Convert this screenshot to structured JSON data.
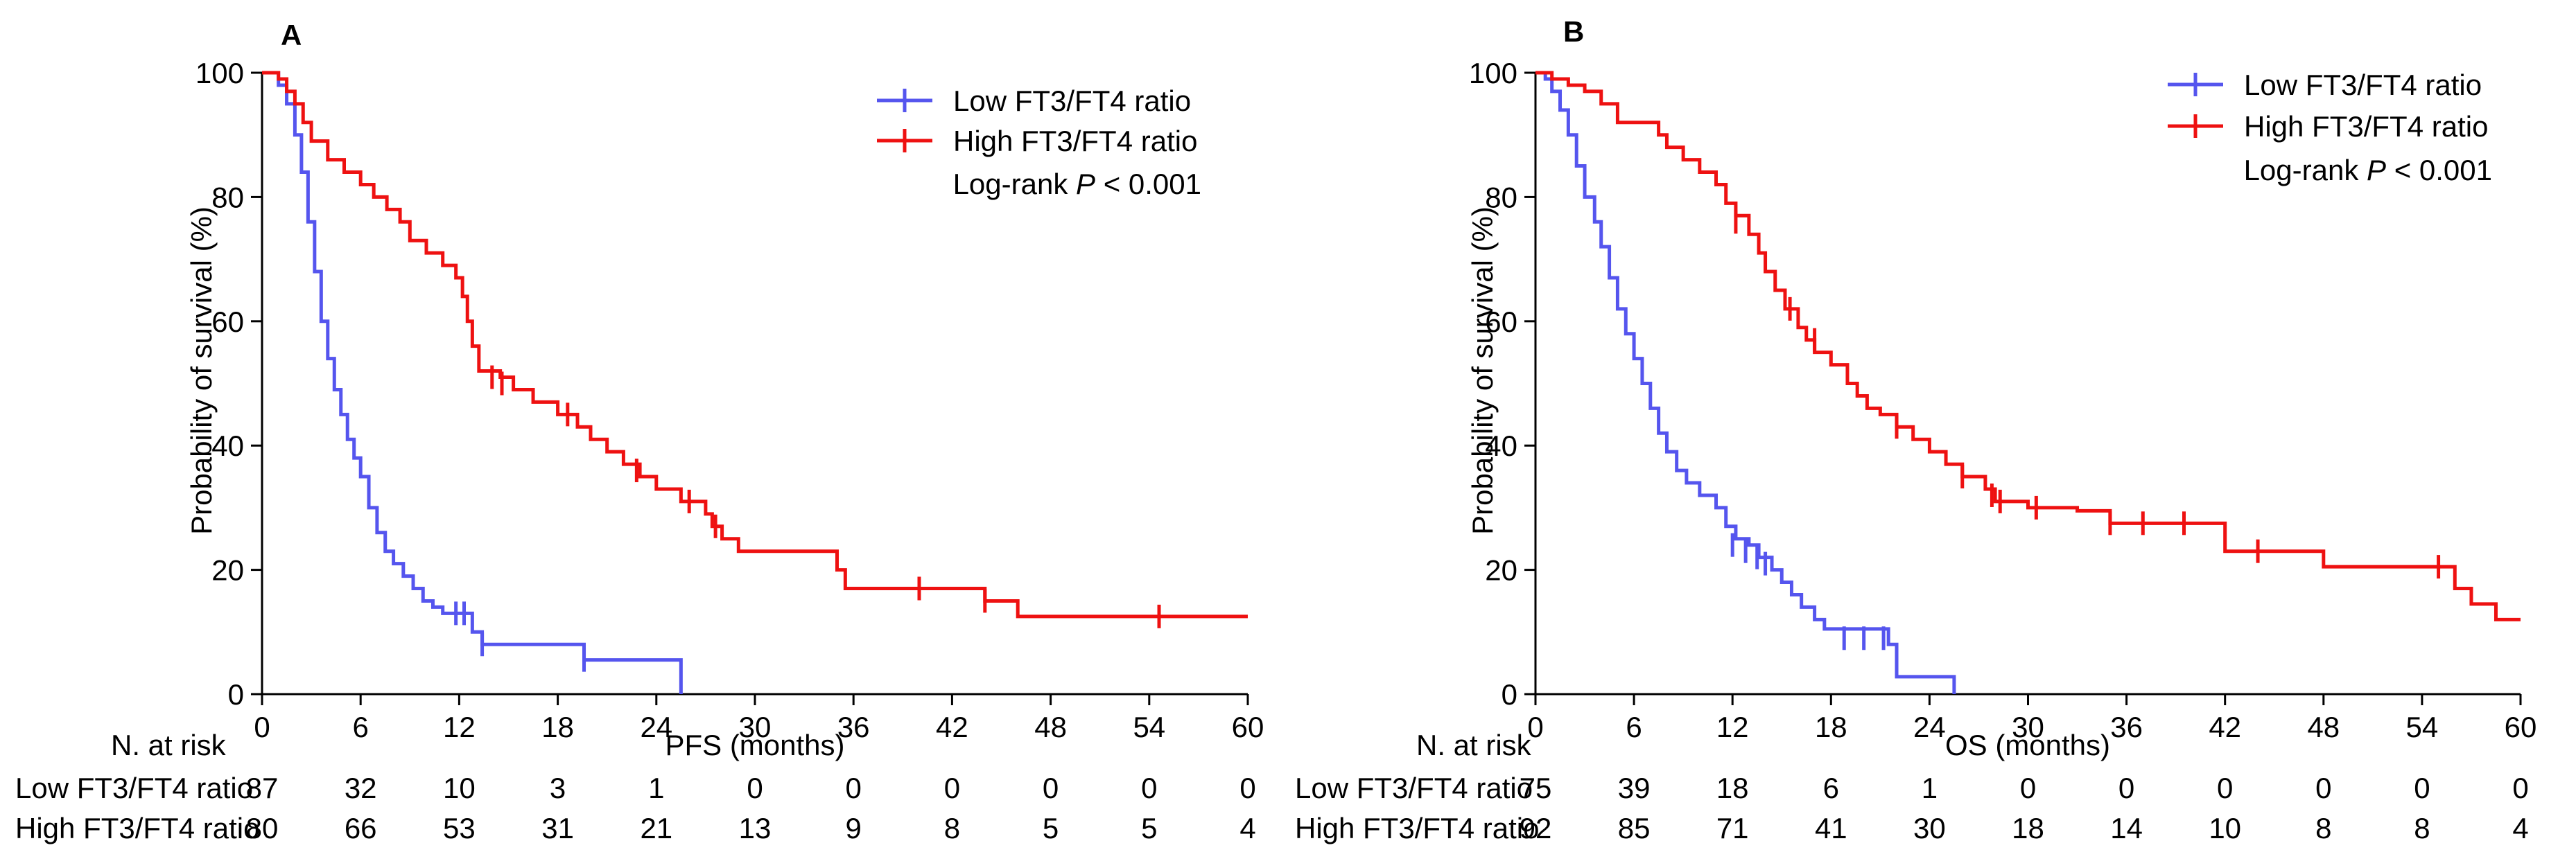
{
  "panels": [
    {
      "panel_label": "A",
      "legend": [
        {
          "label": "Low FT3/FT4 ratio",
          "color": "#5555ee"
        },
        {
          "label": "High FT3/FT4 ratio",
          "color": "#ee1111"
        }
      ],
      "stat": {
        "prefix": "Log-rank ",
        "p": "P",
        "suffix": " < 0.001"
      },
      "risk_table": {
        "header": "N. at risk",
        "rows": [
          {
            "label": "Low FT3/FT4 ratio",
            "values": [
              "87",
              "32",
              "10",
              "3",
              "1",
              "0",
              "0",
              "0",
              "0",
              "0",
              "0"
            ]
          },
          {
            "label": "High FT3/FT4 ratio",
            "values": [
              "80",
              "66",
              "53",
              "31",
              "21",
              "13",
              "9",
              "8",
              "5",
              "5",
              "4"
            ]
          }
        ]
      }
    },
    {
      "panel_label": "B",
      "legend": [
        {
          "label": "Low FT3/FT4 ratio",
          "color": "#5555ee"
        },
        {
          "label": "High FT3/FT4 ratio",
          "color": "#ee1111"
        }
      ],
      "stat": {
        "prefix": "Log-rank ",
        "p": "P",
        "suffix": " < 0.001"
      },
      "risk_table": {
        "header": "N. at risk",
        "rows": [
          {
            "label": "Low FT3/FT4 ratio",
            "values": [
              "75",
              "39",
              "18",
              "6",
              "1",
              "0",
              "0",
              "0",
              "0",
              "0",
              "0"
            ]
          },
          {
            "label": "High FT3/FT4 ratio",
            "values": [
              "92",
              "85",
              "71",
              "41",
              "30",
              "18",
              "14",
              "10",
              "8",
              "8",
              "4"
            ]
          }
        ]
      }
    }
  ],
  "chart_data": [
    {
      "type": "line",
      "subtype": "kaplan-meier",
      "title": "A",
      "xlabel": "PFS (months)",
      "ylabel": "Probability of survival (%)",
      "xlim": [
        0,
        60
      ],
      "ylim": [
        0,
        100
      ],
      "xticks": [
        0,
        6,
        12,
        18,
        24,
        30,
        36,
        42,
        48,
        54,
        60
      ],
      "yticks": [
        0,
        20,
        40,
        60,
        80,
        100
      ],
      "series": [
        {
          "name": "Low FT3/FT4 ratio",
          "color": "#5555ee",
          "steps": [
            [
              0,
              100
            ],
            [
              1,
              98
            ],
            [
              1.5,
              95
            ],
            [
              2,
              90
            ],
            [
              2.4,
              84
            ],
            [
              2.8,
              76
            ],
            [
              3.2,
              68
            ],
            [
              3.6,
              60
            ],
            [
              4,
              54
            ],
            [
              4.4,
              49
            ],
            [
              4.8,
              45
            ],
            [
              5.2,
              41
            ],
            [
              5.6,
              38
            ],
            [
              6,
              35
            ],
            [
              6.5,
              30
            ],
            [
              7,
              26
            ],
            [
              7.5,
              23
            ],
            [
              8,
              21
            ],
            [
              8.6,
              19
            ],
            [
              9.2,
              17
            ],
            [
              9.8,
              15
            ],
            [
              10.4,
              14
            ],
            [
              11,
              13
            ],
            [
              12.2,
              13
            ],
            [
              12.8,
              10
            ],
            [
              13.4,
              8
            ],
            [
              19,
              8
            ],
            [
              19.6,
              5.5
            ],
            [
              25.5,
              5.5
            ],
            [
              25.5,
              0
            ]
          ],
          "censored": [
            [
              11.8,
              13
            ],
            [
              12.3,
              13
            ],
            [
              13.4,
              8
            ],
            [
              19.6,
              5.5
            ]
          ]
        },
        {
          "name": "High FT3/FT4 ratio",
          "color": "#ee1111",
          "steps": [
            [
              0,
              100
            ],
            [
              1,
              99
            ],
            [
              1.5,
              97
            ],
            [
              2,
              95
            ],
            [
              2.5,
              92
            ],
            [
              3,
              89
            ],
            [
              4,
              86
            ],
            [
              5,
              84
            ],
            [
              6,
              82
            ],
            [
              6.8,
              80
            ],
            [
              7.6,
              78
            ],
            [
              8.4,
              76
            ],
            [
              9,
              73
            ],
            [
              10,
              71
            ],
            [
              11,
              69
            ],
            [
              11.8,
              67
            ],
            [
              12.2,
              64
            ],
            [
              12.5,
              60
            ],
            [
              12.8,
              56
            ],
            [
              13.2,
              52
            ],
            [
              14.5,
              51
            ],
            [
              15.3,
              49
            ],
            [
              16.5,
              47
            ],
            [
              18,
              45
            ],
            [
              19.2,
              43
            ],
            [
              20,
              41
            ],
            [
              21,
              39
            ],
            [
              22,
              37
            ],
            [
              23,
              35
            ],
            [
              24,
              33
            ],
            [
              25.5,
              31
            ],
            [
              27,
              29
            ],
            [
              27.4,
              27
            ],
            [
              28,
              25
            ],
            [
              29,
              23
            ],
            [
              32,
              23
            ],
            [
              35,
              20
            ],
            [
              35.5,
              17
            ],
            [
              40,
              17
            ],
            [
              44,
              15
            ],
            [
              46,
              12.5
            ],
            [
              60,
              12.5
            ]
          ],
          "censored": [
            [
              14,
              51
            ],
            [
              14.6,
              50
            ],
            [
              18.6,
              45
            ],
            [
              22.8,
              36
            ],
            [
              26,
              31
            ],
            [
              27.6,
              27
            ],
            [
              40,
              17
            ],
            [
              44,
              15
            ],
            [
              54.6,
              12.5
            ]
          ]
        }
      ]
    },
    {
      "type": "line",
      "subtype": "kaplan-meier",
      "title": "B",
      "xlabel": "OS (months)",
      "ylabel": "Probability of survival (%)",
      "xlim": [
        0,
        60
      ],
      "ylim": [
        0,
        100
      ],
      "xticks": [
        0,
        6,
        12,
        18,
        24,
        30,
        36,
        42,
        48,
        54,
        60
      ],
      "yticks": [
        0,
        20,
        40,
        60,
        80,
        100
      ],
      "series": [
        {
          "name": "Low FT3/FT4 ratio",
          "color": "#5555ee",
          "steps": [
            [
              0,
              100
            ],
            [
              0.6,
              99
            ],
            [
              1,
              97
            ],
            [
              1.5,
              94
            ],
            [
              2,
              90
            ],
            [
              2.5,
              85
            ],
            [
              3,
              80
            ],
            [
              3.6,
              76
            ],
            [
              4,
              72
            ],
            [
              4.5,
              67
            ],
            [
              5,
              62
            ],
            [
              5.5,
              58
            ],
            [
              6,
              54
            ],
            [
              6.5,
              50
            ],
            [
              7,
              46
            ],
            [
              7.5,
              42
            ],
            [
              8,
              39
            ],
            [
              8.6,
              36
            ],
            [
              9.2,
              34
            ],
            [
              10,
              32
            ],
            [
              11,
              30
            ],
            [
              11.6,
              27
            ],
            [
              12.2,
              25
            ],
            [
              13,
              24
            ],
            [
              13.6,
              22
            ],
            [
              14.4,
              20
            ],
            [
              15,
              18
            ],
            [
              15.6,
              16
            ],
            [
              16.2,
              14
            ],
            [
              17,
              12
            ],
            [
              17.6,
              10.5
            ],
            [
              21.5,
              8
            ],
            [
              22,
              2.8
            ],
            [
              25.5,
              2.8
            ],
            [
              25.5,
              0
            ]
          ],
          "censored": [
            [
              12,
              24
            ],
            [
              12.8,
              23
            ],
            [
              13.5,
              22
            ],
            [
              14,
              21
            ],
            [
              18.8,
              9
            ],
            [
              20,
              9
            ],
            [
              21.2,
              9
            ]
          ]
        },
        {
          "name": "High FT3/FT4 ratio",
          "color": "#ee1111",
          "steps": [
            [
              0,
              100
            ],
            [
              1,
              99
            ],
            [
              2,
              98
            ],
            [
              3,
              97
            ],
            [
              4,
              95
            ],
            [
              5,
              92
            ],
            [
              7.5,
              90
            ],
            [
              8,
              88
            ],
            [
              9,
              86
            ],
            [
              10,
              84
            ],
            [
              11,
              82
            ],
            [
              11.6,
              79
            ],
            [
              12.2,
              77
            ],
            [
              13,
              74
            ],
            [
              13.6,
              71
            ],
            [
              14,
              68
            ],
            [
              14.6,
              65
            ],
            [
              15.2,
              62
            ],
            [
              16,
              59
            ],
            [
              16.5,
              57
            ],
            [
              17,
              55
            ],
            [
              18,
              53
            ],
            [
              19,
              50
            ],
            [
              19.6,
              48
            ],
            [
              20.2,
              46
            ],
            [
              21,
              45
            ],
            [
              22,
              43
            ],
            [
              23,
              41
            ],
            [
              24,
              39
            ],
            [
              25,
              37
            ],
            [
              26,
              35
            ],
            [
              27.4,
              33
            ],
            [
              28,
              31
            ],
            [
              30,
              30
            ],
            [
              33,
              29.5
            ],
            [
              35,
              27.5
            ],
            [
              41,
              27.5
            ],
            [
              42,
              23
            ],
            [
              47,
              23
            ],
            [
              48,
              20.5
            ],
            [
              55,
              20.5
            ],
            [
              56,
              17
            ],
            [
              57,
              14.5
            ],
            [
              58.5,
              12
            ],
            [
              60,
              12
            ]
          ],
          "censored": [
            [
              12.2,
              76
            ],
            [
              15.5,
              62
            ],
            [
              17,
              57
            ],
            [
              22,
              43
            ],
            [
              26,
              35
            ],
            [
              27.8,
              32
            ],
            [
              28.3,
              31
            ],
            [
              30.5,
              30
            ],
            [
              35,
              27.5
            ],
            [
              37,
              27.5
            ],
            [
              39.5,
              27.5
            ],
            [
              44,
              23
            ],
            [
              55,
              20.5
            ]
          ]
        }
      ]
    }
  ]
}
